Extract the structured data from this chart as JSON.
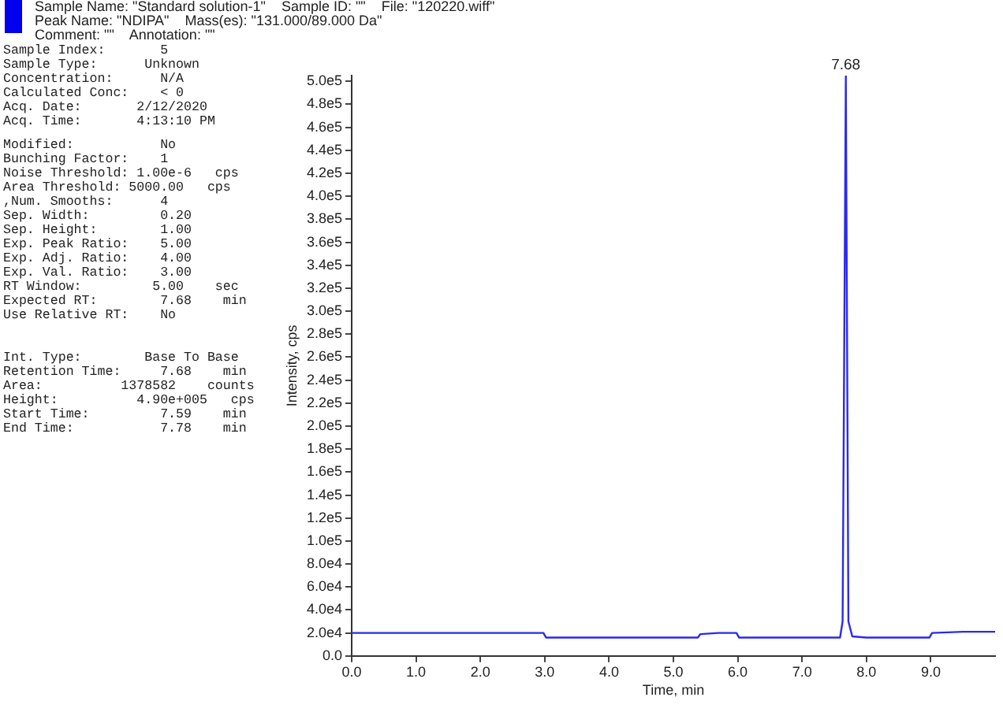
{
  "chart_data": [
    {
      "type": "other",
      "annotations": [
        "Sample Name: \"Standard solution-1\"    Sample ID: \"\"    File: \"120220.wiff\"",
        "Peak Name: \"NDIPA\"    Mass(es): \"131.000/89.000 Da\"",
        "Comment: \"\"    Annotation: \"\""
      ]
    },
    {
      "type": "other",
      "annotations": [
        "Sample Index:       5",
        "Sample Type:      Unknown",
        "Concentration:      N/A",
        "Calculated Conc:    < 0",
        "Acq. Date:       2/12/2020",
        "Acq. Time:       4:13:10 PM"
      ]
    },
    {
      "type": "other",
      "annotations": [
        "Modified:           No",
        "Bunching Factor:    1",
        "Noise Threshold: 1.00e-6   cps",
        "Area Threshold: 5000.00   cps",
        ",Num. Smooths:      4",
        "Sep. Width:         0.20",
        "Sep. Height:        1.00",
        "Exp. Peak Ratio:    5.00",
        "Exp. Adj. Ratio:    4.00",
        "Exp. Val. Ratio:    3.00",
        "RT Window:         5.00    sec",
        "Expected RT:        7.68    min",
        "Use Relative RT:    No"
      ]
    },
    {
      "type": "other",
      "annotations": [
        "Int. Type:        Base To Base",
        "Retention Time:     7.68    min",
        "Area:          1378582    counts",
        "Height:          4.90e+005   cps",
        "Start Time:         7.59    min",
        "End Time:           7.78    min"
      ]
    },
    {
      "type": "line",
      "xlabel": "Time, min",
      "ylabel": "Intensity, cps",
      "series": [
        {
          "color": "#2a2aee",
          "x": [
            0,
            0.5,
            1.0,
            1.5,
            2.0,
            2.5,
            2.98,
            3.02,
            3.5,
            4.0,
            4.5,
            5.0,
            5.38,
            5.42,
            5.7,
            5.98,
            6.02,
            6.5,
            7.0,
            7.59,
            7.63,
            7.68,
            7.72,
            7.78,
            8.0,
            8.5,
            8.98,
            9.02,
            9.5,
            10.0
          ],
          "values": [
            20000,
            20000,
            20000,
            20000,
            20000,
            20000,
            20000,
            16000,
            16000,
            16000,
            16000,
            16000,
            16000,
            19000,
            20000,
            20000,
            16000,
            16000,
            16000,
            16000,
            30000,
            505000,
            30000,
            17000,
            16000,
            16000,
            16000,
            20000,
            21000,
            21000
          ]
        }
      ],
      "xlim": [
        0,
        10.0
      ],
      "xticks": [
        {
          "value": 0,
          "label": "0.0"
        },
        {
          "value": 1,
          "label": "1.0"
        },
        {
          "value": 2,
          "label": "2.0"
        },
        {
          "value": 3,
          "label": "3.0"
        },
        {
          "value": 4,
          "label": "4.0"
        },
        {
          "value": 5,
          "label": "5.0"
        },
        {
          "value": 6,
          "label": "6.0"
        },
        {
          "value": 7,
          "label": "7.0"
        },
        {
          "value": 8,
          "label": "8.0"
        },
        {
          "value": 9,
          "label": "9.0"
        }
      ],
      "ylim": [
        0,
        505000
      ],
      "yticks": [
        {
          "value": 0,
          "label": "0.0"
        },
        {
          "value": 20000,
          "label": "2.0e4"
        },
        {
          "value": 40000,
          "label": "4.0e4"
        },
        {
          "value": 60000,
          "label": "6.0e4"
        },
        {
          "value": 80000,
          "label": "8.0e4"
        },
        {
          "value": 100000,
          "label": "1.0e5"
        },
        {
          "value": 120000,
          "label": "1.2e5"
        },
        {
          "value": 140000,
          "label": "1.4e5"
        },
        {
          "value": 160000,
          "label": "1.6e5"
        },
        {
          "value": 180000,
          "label": "1.8e5"
        },
        {
          "value": 200000,
          "label": "2.0e5"
        },
        {
          "value": 220000,
          "label": "2.2e5"
        },
        {
          "value": 240000,
          "label": "2.4e5"
        },
        {
          "value": 260000,
          "label": "2.6e5"
        },
        {
          "value": 280000,
          "label": "2.8e5"
        },
        {
          "value": 300000,
          "label": "3.0e5"
        },
        {
          "value": 320000,
          "label": "3.2e5"
        },
        {
          "value": 340000,
          "label": "3.4e5"
        },
        {
          "value": 360000,
          "label": "3.6e5"
        },
        {
          "value": 380000,
          "label": "3.8e5"
        },
        {
          "value": 400000,
          "label": "4.0e5"
        },
        {
          "value": 420000,
          "label": "4.2e5"
        },
        {
          "value": 440000,
          "label": "4.4e5"
        },
        {
          "value": 460000,
          "label": "4.6e5"
        },
        {
          "value": 480000,
          "label": "4.8e5"
        },
        {
          "value": 500000,
          "label": "5.0e5"
        }
      ],
      "annotations": [
        {
          "text": "7.68",
          "x": 7.68,
          "y": 505000
        }
      ],
      "grid": false,
      "legend": false,
      "marker": "none",
      "line_style": "solid"
    }
  ]
}
